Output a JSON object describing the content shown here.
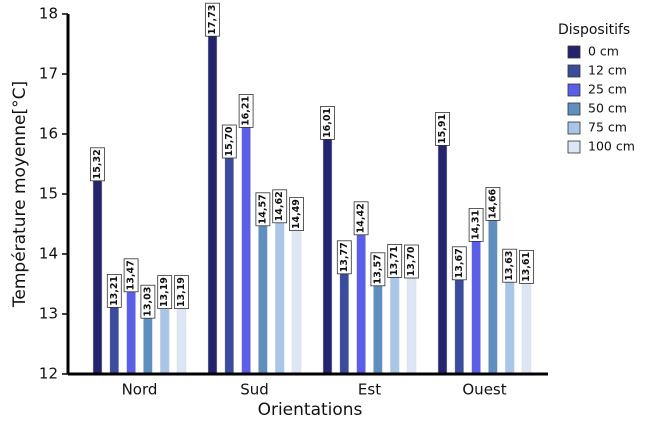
{
  "chart_data": {
    "type": "bar",
    "x_label": "Orientations",
    "y_label": "Température moyenne[°C]",
    "legend_title": "Dispositifs",
    "legend": "right",
    "categories": [
      "Nord",
      "Sud",
      "Est",
      "Ouest"
    ],
    "ylim": [
      12,
      18
    ],
    "yticks": [
      12,
      13,
      14,
      15,
      16,
      17,
      18
    ],
    "series": [
      {
        "name": "0 cm",
        "color": "#24246e",
        "values": [
          15.32,
          17.73,
          16.01,
          15.91
        ],
        "value_labels": [
          "15,32",
          "17,73",
          "16,01",
          "15,91"
        ]
      },
      {
        "name": "12 cm",
        "color": "#3b4c9c",
        "values": [
          13.21,
          15.7,
          13.77,
          13.67
        ],
        "value_labels": [
          "13,21",
          "15,70",
          "13,77",
          "13,67"
        ]
      },
      {
        "name": "25 cm",
        "color": "#5b5ee6",
        "values": [
          13.47,
          16.21,
          14.42,
          14.31
        ],
        "value_labels": [
          "13,47",
          "16,21",
          "14,42",
          "14,31"
        ]
      },
      {
        "name": "50 cm",
        "color": "#5f8fbf",
        "values": [
          13.03,
          14.57,
          13.57,
          14.66
        ],
        "value_labels": [
          "13,03",
          "14,57",
          "13,57",
          "14,66"
        ]
      },
      {
        "name": "75 cm",
        "color": "#a9c6e8",
        "values": [
          13.19,
          14.62,
          13.71,
          13.63
        ],
        "value_labels": [
          "13,19",
          "14,62",
          "13,71",
          "13,63"
        ]
      },
      {
        "name": "100 cm",
        "color": "#dde6f4",
        "values": [
          13.19,
          14.49,
          13.7,
          13.61
        ],
        "value_labels": [
          "13,19",
          "14,49",
          "13,70",
          "13,61"
        ]
      }
    ]
  }
}
